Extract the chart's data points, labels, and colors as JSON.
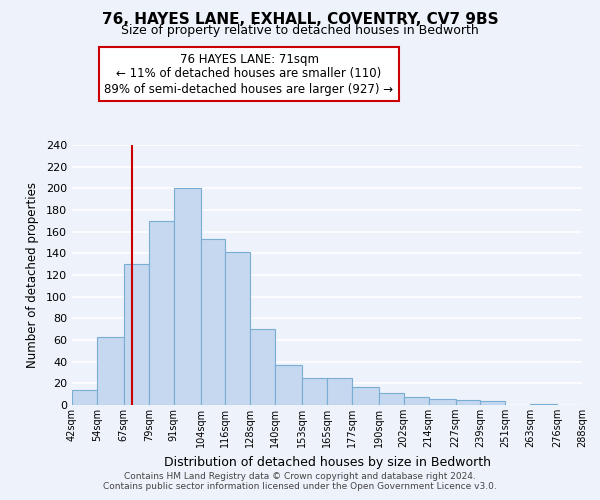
{
  "title": "76, HAYES LANE, EXHALL, COVENTRY, CV7 9BS",
  "subtitle": "Size of property relative to detached houses in Bedworth",
  "xlabel": "Distribution of detached houses by size in Bedworth",
  "ylabel": "Number of detached properties",
  "bar_left_edges": [
    42,
    54,
    67,
    79,
    91,
    104,
    116,
    128,
    140,
    153,
    165,
    177,
    190,
    202,
    214,
    227,
    239,
    251,
    263,
    276
  ],
  "bar_heights": [
    14,
    63,
    130,
    170,
    200,
    153,
    141,
    70,
    37,
    25,
    25,
    17,
    11,
    7,
    6,
    5,
    4,
    0,
    1,
    0
  ],
  "bar_widths": [
    12,
    13,
    12,
    12,
    13,
    12,
    12,
    12,
    13,
    12,
    12,
    13,
    12,
    12,
    13,
    12,
    12,
    12,
    13,
    12
  ],
  "bin_labels": [
    "42sqm",
    "54sqm",
    "67sqm",
    "79sqm",
    "91sqm",
    "104sqm",
    "116sqm",
    "128sqm",
    "140sqm",
    "153sqm",
    "165sqm",
    "177sqm",
    "190sqm",
    "202sqm",
    "214sqm",
    "227sqm",
    "239sqm",
    "251sqm",
    "263sqm",
    "276sqm",
    "288sqm"
  ],
  "bar_color": "#c5d8f0",
  "bar_edge_color": "#7aadd4",
  "property_line_x": 71,
  "property_line_color": "#cc0000",
  "ylim": [
    0,
    240
  ],
  "yticks": [
    0,
    20,
    40,
    60,
    80,
    100,
    120,
    140,
    160,
    180,
    200,
    220,
    240
  ],
  "annotation_line1": "76 HAYES LANE: 71sqm",
  "annotation_line2": "← 11% of detached houses are smaller (110)",
  "annotation_line3": "89% of semi-detached houses are larger (927) →",
  "footer_line1": "Contains HM Land Registry data © Crown copyright and database right 2024.",
  "footer_line2": "Contains public sector information licensed under the Open Government Licence v3.0.",
  "background_color": "#eef2fa",
  "grid_color": "#ffffff"
}
